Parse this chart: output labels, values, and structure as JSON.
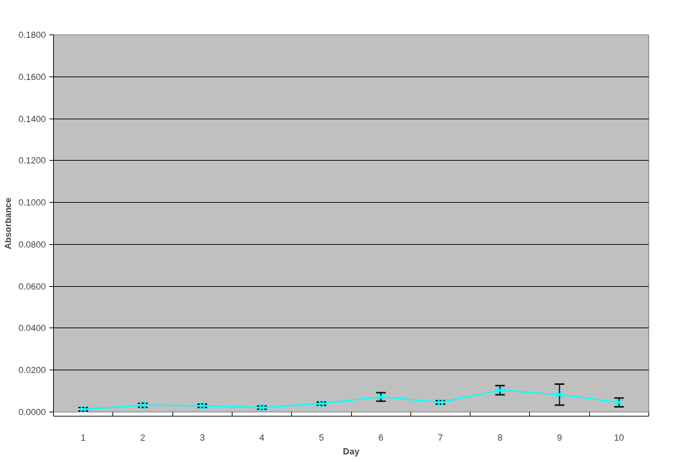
{
  "chart_data": {
    "type": "line",
    "xlabel": "Day",
    "ylabel": "Absorbance",
    "categories": [
      "1",
      "2",
      "3",
      "4",
      "5",
      "6",
      "7",
      "8",
      "9",
      "10"
    ],
    "series": [
      {
        "color": "#00ffff",
        "values": [
          0.0013,
          0.0032,
          0.003,
          0.0021,
          0.004,
          0.0072,
          0.0046,
          0.0104,
          0.0083,
          0.0046
        ],
        "errors": [
          0.0008,
          0.001,
          0.0008,
          0.0008,
          0.0008,
          0.002,
          0.0008,
          0.0022,
          0.005,
          0.0021
        ]
      }
    ],
    "ylim": [
      0,
      0.18
    ],
    "yticks": [
      {
        "value": 0,
        "label": "0.0000"
      },
      {
        "value": 0.02,
        "label": "0.0200"
      },
      {
        "value": 0.04,
        "label": "0.0400"
      },
      {
        "value": 0.06,
        "label": "0.0600"
      },
      {
        "value": 0.08,
        "label": "0.0800"
      },
      {
        "value": 0.1,
        "label": "0.1000"
      },
      {
        "value": 0.12,
        "label": "0.1200"
      },
      {
        "value": 0.14,
        "label": "0.1400"
      },
      {
        "value": 0.16,
        "label": "0.1600"
      },
      {
        "value": 0.18,
        "label": "0.1800"
      }
    ],
    "grid": "y",
    "marker": "cross",
    "line_style": "solid"
  }
}
